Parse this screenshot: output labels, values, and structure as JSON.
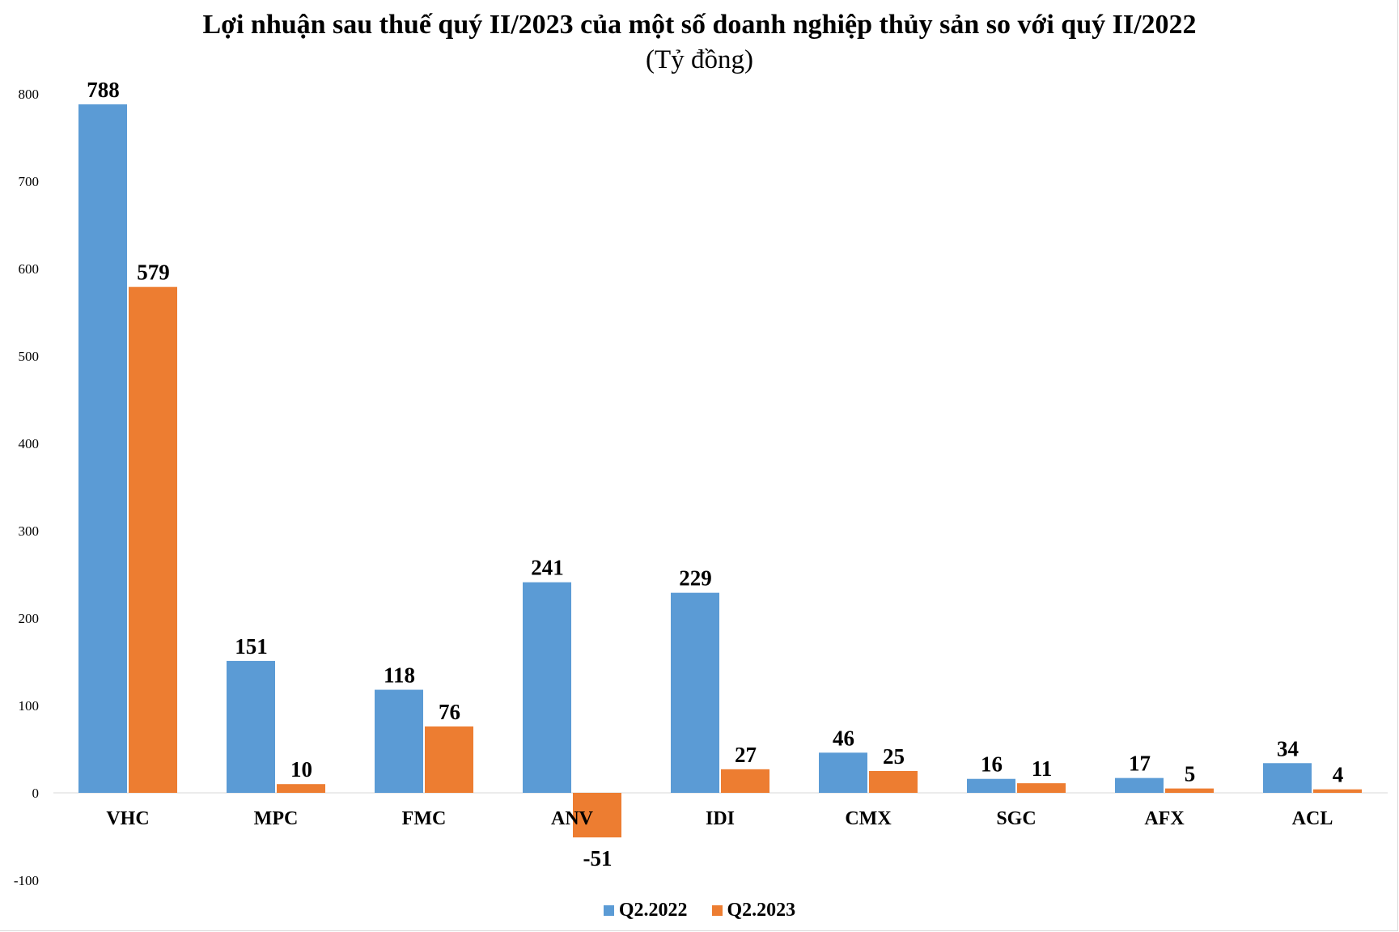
{
  "chart_data": {
    "type": "bar",
    "title": "Lợi nhuận sau thuế quý II/2023 của một số doanh nghiệp thủy sản so với quý II/2022",
    "subtitle": "(Tỷ đồng)",
    "xlabel": "",
    "ylabel": "",
    "categories": [
      "VHC",
      "MPC",
      "FMC",
      "ANV",
      "IDI",
      "CMX",
      "SGC",
      "AFX",
      "ACL"
    ],
    "series": [
      {
        "name": "Q2.2022",
        "color": "#5b9bd5",
        "values": [
          788,
          151,
          118,
          241,
          229,
          46,
          16,
          17,
          34
        ]
      },
      {
        "name": "Q2.2023",
        "color": "#ed7d31",
        "values": [
          579,
          10,
          76,
          -51,
          27,
          25,
          11,
          5,
          4
        ]
      }
    ],
    "ylim": [
      -100,
      800
    ],
    "yticks": [
      800,
      700,
      600,
      500,
      400,
      300,
      200,
      100,
      0,
      -100
    ],
    "grid": false,
    "data_labels": true,
    "legend": "bottom"
  }
}
